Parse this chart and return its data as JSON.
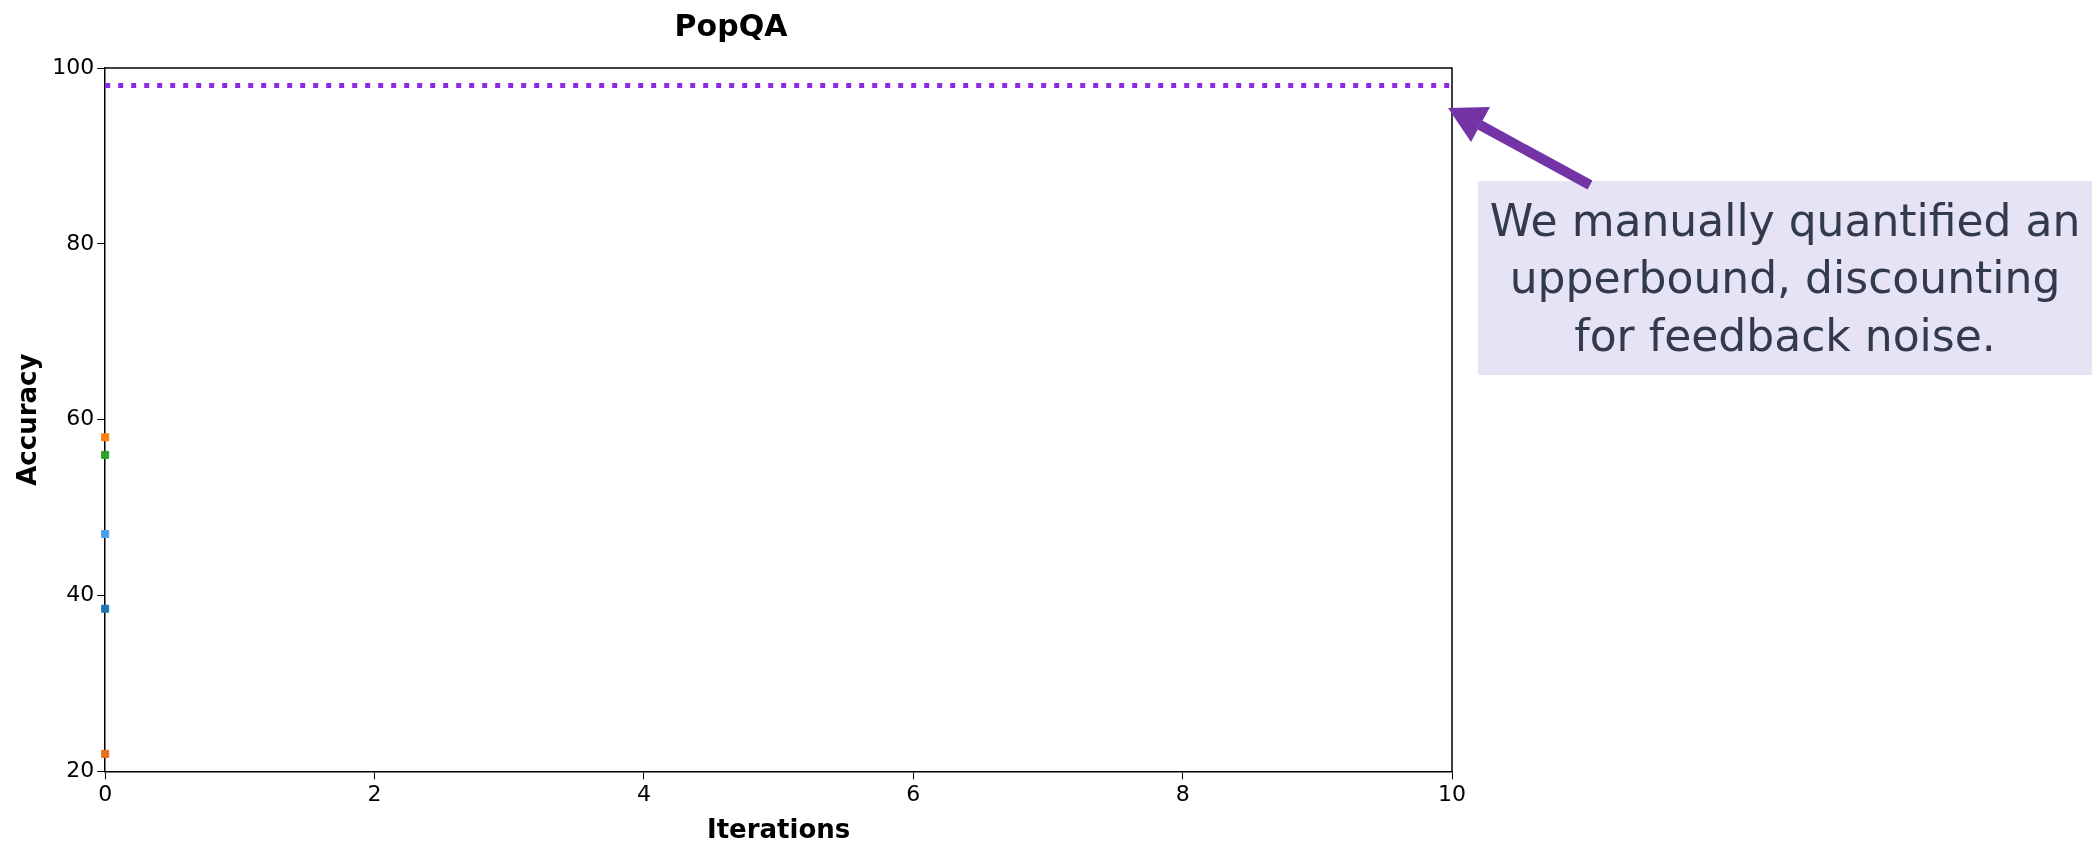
{
  "chart_data": {
    "type": "scatter",
    "title": "PopQA",
    "xlabel": "Iterations",
    "ylabel": "Accuracy",
    "x": [
      0
    ],
    "series": [
      {
        "color": "#ff7f0e",
        "values": [
          58
        ]
      },
      {
        "color": "#2ca02c",
        "values": [
          56
        ]
      },
      {
        "color": "#4a9fe8",
        "values": [
          47
        ]
      },
      {
        "color": "#1f77b4",
        "values": [
          38.5
        ]
      },
      {
        "color": "#e8701a",
        "values": [
          22
        ]
      }
    ],
    "marker": "square",
    "xlim": [
      0,
      10
    ],
    "xticks": [
      0,
      2,
      4,
      6,
      8,
      10
    ],
    "ylim": [
      20,
      100
    ],
    "yticks": [
      20,
      40,
      60,
      80,
      100
    ],
    "ref_lines": [
      {
        "axis": "y",
        "value": 98,
        "color": "#8a2be2",
        "line_style": "dotted"
      }
    ],
    "annotations": [
      "We manually quantified an upperbound, discounting for feedback noise."
    ],
    "legend": false
  }
}
